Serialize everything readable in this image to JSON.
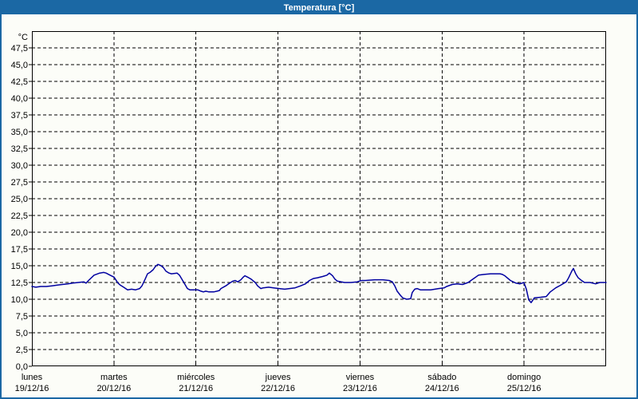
{
  "title": "Temperatura [°C]",
  "colors": {
    "titlebar_bg": "#1B68A4",
    "titlebar_text": "#FFFFFF",
    "frame_border": "#1B68A4",
    "panel_bg": "#FCFDF8",
    "axis": "#000000",
    "grid": "#000000",
    "series": "#0000A0",
    "label_text": "#000000"
  },
  "chart_data": {
    "type": "line",
    "title": "Temperatura [°C]",
    "ylabel": "°C",
    "ylim": [
      0,
      50
    ],
    "y_tick_step": 2.5,
    "grid": "dashed",
    "legend": "none",
    "y_ticks": [
      {
        "v": 47.5,
        "label": "47,5"
      },
      {
        "v": 45.0,
        "label": "45,0"
      },
      {
        "v": 42.5,
        "label": "42,5"
      },
      {
        "v": 40.0,
        "label": "40,0"
      },
      {
        "v": 37.5,
        "label": "37,5"
      },
      {
        "v": 35.0,
        "label": "35,0"
      },
      {
        "v": 32.5,
        "label": "32,5"
      },
      {
        "v": 30.0,
        "label": "30,0"
      },
      {
        "v": 27.5,
        "label": "27,5"
      },
      {
        "v": 25.0,
        "label": "25,0"
      },
      {
        "v": 22.5,
        "label": "22,5"
      },
      {
        "v": 20.0,
        "label": "20,0"
      },
      {
        "v": 17.5,
        "label": "17,5"
      },
      {
        "v": 15.0,
        "label": "15,0"
      },
      {
        "v": 12.5,
        "label": "12,5"
      },
      {
        "v": 10.0,
        "label": "10,0"
      },
      {
        "v": 7.5,
        "label": "7,5"
      },
      {
        "v": 5.0,
        "label": "5,0"
      },
      {
        "v": 2.5,
        "label": "2,5"
      },
      {
        "v": 0.0,
        "label": "0,0"
      }
    ],
    "x_days": [
      {
        "name": "lunes",
        "date": "19/12/16"
      },
      {
        "name": "martes",
        "date": "20/12/16"
      },
      {
        "name": "miércoles",
        "date": "21/12/16"
      },
      {
        "name": "jueves",
        "date": "22/12/16"
      },
      {
        "name": "viernes",
        "date": "23/12/16"
      },
      {
        "name": "sábado",
        "date": "24/12/16"
      },
      {
        "name": "domingo",
        "date": "25/12/16"
      }
    ],
    "x_unit": "days, 0 = start of lunes 19/12/16, 7 = end of domingo 25/12/16",
    "xlim": [
      0,
      7
    ],
    "series": [
      {
        "name": "Temperatura",
        "color": "#0000A0",
        "points": [
          [
            0.0,
            11.9
          ],
          [
            0.049,
            11.8
          ],
          [
            0.107,
            11.9
          ],
          [
            0.175,
            11.9
          ],
          [
            0.243,
            12.0
          ],
          [
            0.301,
            12.1
          ],
          [
            0.369,
            12.2
          ],
          [
            0.437,
            12.3
          ],
          [
            0.496,
            12.4
          ],
          [
            0.564,
            12.5
          ],
          [
            0.632,
            12.6
          ],
          [
            0.661,
            12.4
          ],
          [
            0.69,
            12.8
          ],
          [
            0.758,
            13.6
          ],
          [
            0.826,
            13.9
          ],
          [
            0.875,
            14.0
          ],
          [
            0.904,
            13.9
          ],
          [
            0.953,
            13.6
          ],
          [
            1.001,
            13.3
          ],
          [
            1.05,
            12.4
          ],
          [
            1.079,
            12.1
          ],
          [
            1.118,
            11.8
          ],
          [
            1.167,
            11.4
          ],
          [
            1.215,
            11.5
          ],
          [
            1.264,
            11.4
          ],
          [
            1.313,
            11.6
          ],
          [
            1.342,
            12.0
          ],
          [
            1.381,
            13.0
          ],
          [
            1.41,
            13.8
          ],
          [
            1.439,
            14.0
          ],
          [
            1.478,
            14.4
          ],
          [
            1.507,
            14.9
          ],
          [
            1.536,
            15.2
          ],
          [
            1.575,
            15.0
          ],
          [
            1.604,
            14.7
          ],
          [
            1.633,
            14.2
          ],
          [
            1.672,
            13.9
          ],
          [
            1.701,
            13.8
          ],
          [
            1.769,
            13.9
          ],
          [
            1.799,
            13.6
          ],
          [
            1.828,
            13.0
          ],
          [
            1.867,
            12.2
          ],
          [
            1.896,
            11.6
          ],
          [
            1.925,
            11.4
          ],
          [
            1.993,
            11.4
          ],
          [
            2.022,
            11.4
          ],
          [
            2.061,
            11.2
          ],
          [
            2.09,
            11.1
          ],
          [
            2.119,
            11.2
          ],
          [
            2.158,
            11.1
          ],
          [
            2.217,
            11.1
          ],
          [
            2.256,
            11.2
          ],
          [
            2.285,
            11.3
          ],
          [
            2.304,
            11.6
          ],
          [
            2.363,
            12.0
          ],
          [
            2.411,
            12.4
          ],
          [
            2.45,
            12.7
          ],
          [
            2.479,
            12.8
          ],
          [
            2.508,
            12.6
          ],
          [
            2.547,
            12.9
          ],
          [
            2.576,
            13.3
          ],
          [
            2.596,
            13.5
          ],
          [
            2.644,
            13.2
          ],
          [
            2.673,
            13.0
          ],
          [
            2.722,
            12.5
          ],
          [
            2.751,
            12.0
          ],
          [
            2.79,
            11.6
          ],
          [
            2.819,
            11.7
          ],
          [
            2.887,
            11.8
          ],
          [
            2.946,
            11.7
          ],
          [
            3.014,
            11.6
          ],
          [
            3.082,
            11.5
          ],
          [
            3.14,
            11.6
          ],
          [
            3.208,
            11.7
          ],
          [
            3.276,
            12.0
          ],
          [
            3.335,
            12.3
          ],
          [
            3.383,
            12.8
          ],
          [
            3.432,
            13.1
          ],
          [
            3.481,
            13.2
          ],
          [
            3.549,
            13.4
          ],
          [
            3.597,
            13.6
          ],
          [
            3.626,
            13.9
          ],
          [
            3.665,
            13.5
          ],
          [
            3.694,
            13.0
          ],
          [
            3.724,
            12.7
          ],
          [
            3.772,
            12.6
          ],
          [
            3.811,
            12.5
          ],
          [
            3.889,
            12.5
          ],
          [
            3.967,
            12.6
          ],
          [
            4.015,
            12.8
          ],
          [
            4.064,
            12.8
          ],
          [
            4.181,
            12.9
          ],
          [
            4.278,
            12.9
          ],
          [
            4.356,
            12.8
          ],
          [
            4.394,
            12.6
          ],
          [
            4.424,
            12.0
          ],
          [
            4.453,
            11.2
          ],
          [
            4.492,
            10.6
          ],
          [
            4.521,
            10.2
          ],
          [
            4.569,
            10.0
          ],
          [
            4.618,
            10.1
          ],
          [
            4.637,
            11.0
          ],
          [
            4.667,
            11.5
          ],
          [
            4.696,
            11.6
          ],
          [
            4.735,
            11.4
          ],
          [
            4.793,
            11.4
          ],
          [
            4.861,
            11.4
          ],
          [
            4.958,
            11.6
          ],
          [
            5.026,
            11.7
          ],
          [
            5.056,
            11.9
          ],
          [
            5.124,
            12.2
          ],
          [
            5.182,
            12.3
          ],
          [
            5.25,
            12.2
          ],
          [
            5.318,
            12.5
          ],
          [
            5.376,
            13.0
          ],
          [
            5.444,
            13.6
          ],
          [
            5.512,
            13.7
          ],
          [
            5.59,
            13.8
          ],
          [
            5.707,
            13.8
          ],
          [
            5.736,
            13.7
          ],
          [
            5.765,
            13.5
          ],
          [
            5.833,
            12.8
          ],
          [
            5.901,
            12.4
          ],
          [
            5.95,
            12.3
          ],
          [
            5.998,
            12.5
          ],
          [
            6.028,
            11.5
          ],
          [
            6.057,
            9.9
          ],
          [
            6.086,
            9.5
          ],
          [
            6.125,
            10.2
          ],
          [
            6.202,
            10.3
          ],
          [
            6.27,
            10.4
          ],
          [
            6.319,
            11.1
          ],
          [
            6.387,
            11.7
          ],
          [
            6.446,
            12.1
          ],
          [
            6.514,
            12.6
          ],
          [
            6.543,
            13.2
          ],
          [
            6.582,
            14.2
          ],
          [
            6.601,
            14.6
          ],
          [
            6.63,
            13.8
          ],
          [
            6.66,
            13.2
          ],
          [
            6.689,
            12.9
          ],
          [
            6.737,
            12.5
          ],
          [
            6.805,
            12.5
          ],
          [
            6.873,
            12.3
          ],
          [
            6.922,
            12.5
          ],
          [
            7.0,
            12.5
          ]
        ]
      }
    ]
  }
}
